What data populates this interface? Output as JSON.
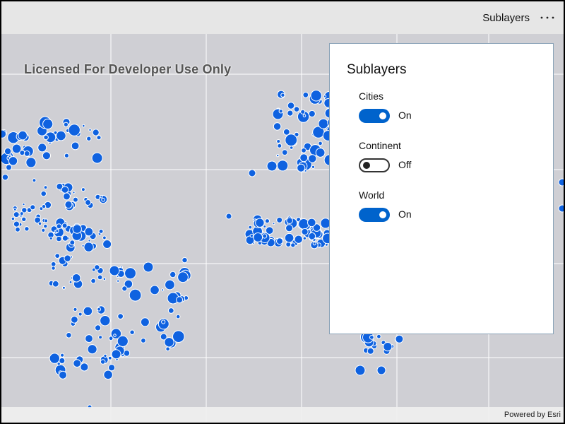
{
  "command_bar": {
    "label": "Sublayers",
    "more_icon": "more-horizontal-icon"
  },
  "map": {
    "watermark": "Licensed For Developer Use Only",
    "attribution": "Powered by Esri",
    "background_color": "#cfcfd4",
    "point_color": "#0f62e0",
    "point_outline": "#ffffff"
  },
  "panel": {
    "title": "Sublayers",
    "layers": [
      {
        "name": "Cities",
        "state": "On",
        "on": true
      },
      {
        "name": "Continent",
        "state": "Off",
        "on": false
      },
      {
        "name": "World",
        "state": "On",
        "on": true
      }
    ]
  },
  "colors": {
    "accent": "#0063cc"
  }
}
